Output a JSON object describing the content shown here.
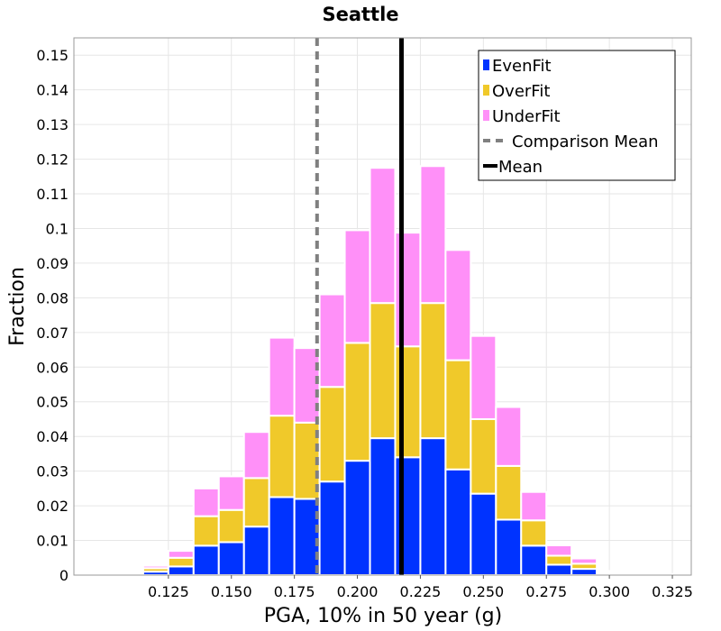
{
  "chart_data": {
    "type": "bar",
    "stacked": true,
    "title": "Seattle",
    "xlabel": "PGA, 10% in 50 year (g)",
    "ylabel": "Fraction",
    "xlim": [
      0.0875,
      0.3325
    ],
    "ylim": [
      0,
      0.155
    ],
    "grid": true,
    "legend_position": "top-right",
    "bin_width": 0.01,
    "x": [
      0.12,
      0.13,
      0.14,
      0.15,
      0.16,
      0.17,
      0.18,
      0.19,
      0.2,
      0.21,
      0.22,
      0.23,
      0.24,
      0.25,
      0.26,
      0.27,
      0.28,
      0.29,
      0.3,
      0.31,
      0.32
    ],
    "series": [
      {
        "name": "EvenFit",
        "color": "#0033ff",
        "values": [
          0.001,
          0.0025,
          0.0085,
          0.0095,
          0.014,
          0.0225,
          0.022,
          0.027,
          0.033,
          0.0395,
          0.034,
          0.0395,
          0.0305,
          0.0235,
          0.016,
          0.0085,
          0.003,
          0.0018,
          0.0005,
          0.0002,
          0.0001
        ]
      },
      {
        "name": "OverFit",
        "color": "#f0c92a",
        "values": [
          0.001,
          0.0025,
          0.0085,
          0.0093,
          0.014,
          0.0235,
          0.022,
          0.0273,
          0.034,
          0.039,
          0.032,
          0.039,
          0.0315,
          0.0215,
          0.0155,
          0.0073,
          0.0026,
          0.0015,
          0.0003,
          0.0002,
          0.0001
        ]
      },
      {
        "name": "UnderFit",
        "color": "#ff90f8",
        "values": [
          0.0007,
          0.002,
          0.008,
          0.0097,
          0.0133,
          0.0225,
          0.0215,
          0.0267,
          0.0325,
          0.039,
          0.0328,
          0.0395,
          0.0318,
          0.024,
          0.017,
          0.0082,
          0.003,
          0.0015,
          0.0004,
          0.0002,
          0.0001
        ]
      }
    ],
    "reference_lines": [
      {
        "name": "Comparison Mean",
        "x": 0.184,
        "color": "#808080",
        "style": "dashed"
      },
      {
        "name": "Mean",
        "x": 0.2175,
        "color": "#000000",
        "style": "solid"
      }
    ],
    "x_ticks": [
      "0.125",
      "0.150",
      "0.175",
      "0.200",
      "0.225",
      "0.250",
      "0.275",
      "0.300",
      "0.325"
    ],
    "y_ticks": [
      "0",
      "0.01",
      "0.02",
      "0.03",
      "0.04",
      "0.05",
      "0.06",
      "0.07",
      "0.08",
      "0.09",
      "0.1",
      "0.11",
      "0.12",
      "0.13",
      "0.14",
      "0.15"
    ]
  }
}
